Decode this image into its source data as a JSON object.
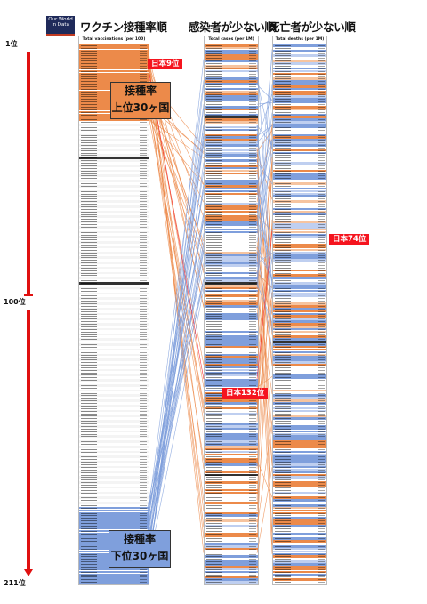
{
  "logo": {
    "line1": "Our World",
    "line2": "in Data"
  },
  "headers": {
    "vaccination": "ワクチン接種率順",
    "cases": "感染者が少ない順",
    "deaths": "死亡者が少ない順"
  },
  "columns": {
    "vaccination": "Total vaccinations (per 100)",
    "cases": "Total cases (per 1M)",
    "deaths": "Total deaths (per 1M)"
  },
  "ranks": {
    "top": "1位",
    "mid": "100位",
    "bottom": "211位"
  },
  "tags": {
    "japan_vax": "日本9位",
    "japan_deaths": "日本74位",
    "japan_cases": "日本132位"
  },
  "boxes": {
    "top30": {
      "line1": "接種率",
      "line2": "上位30ヶ国"
    },
    "bottom30": {
      "line1": "接種率",
      "line2": "下位30ヶ国"
    }
  },
  "colors": {
    "orange": "#ec8a4a",
    "orange_light": "#f6c4a0",
    "blue": "#7f9fdc",
    "blue_light": "#bfcff0",
    "red": "#f5141e"
  }
}
